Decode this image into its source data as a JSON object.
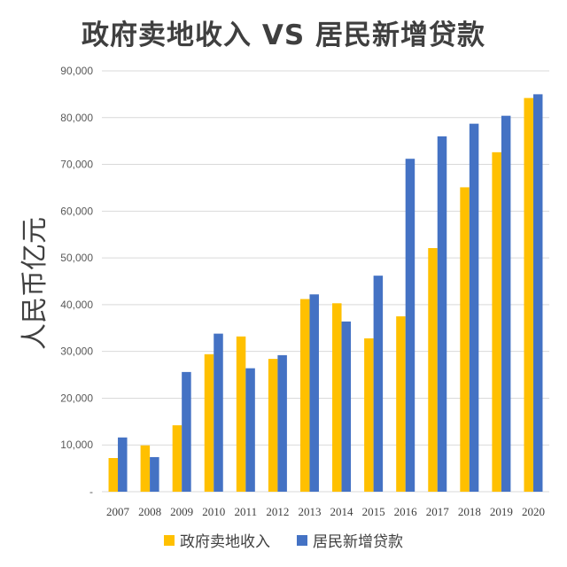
{
  "chart_data": {
    "type": "bar",
    "title": "政府卖地收入 VS 居民新增贷款",
    "ylabel": "人民币亿元",
    "xlabel": "",
    "categories": [
      "2007",
      "2008",
      "2009",
      "2010",
      "2011",
      "2012",
      "2013",
      "2014",
      "2015",
      "2016",
      "2017",
      "2018",
      "2019",
      "2020"
    ],
    "series": [
      {
        "name": "政府卖地收入",
        "color": "#FFC000",
        "values": [
          7200,
          9900,
          14200,
          29400,
          33200,
          28400,
          41200,
          40300,
          32800,
          37500,
          52100,
          65100,
          72600,
          84200
        ]
      },
      {
        "name": "居民新增贷款",
        "color": "#4472C4",
        "values": [
          11600,
          7400,
          25600,
          33800,
          26400,
          29200,
          42200,
          36400,
          46200,
          71200,
          76000,
          78700,
          80400,
          85000
        ]
      }
    ],
    "ylim": [
      0,
      90000
    ],
    "yticks": [
      0,
      10000,
      20000,
      30000,
      40000,
      50000,
      60000,
      70000,
      80000,
      90000
    ],
    "ytick_labels": [
      "-",
      "10,000",
      "20,000",
      "30,000",
      "40,000",
      "50,000",
      "60,000",
      "70,000",
      "80,000",
      "90,000"
    ],
    "grid": true,
    "legend_position": "bottom"
  }
}
